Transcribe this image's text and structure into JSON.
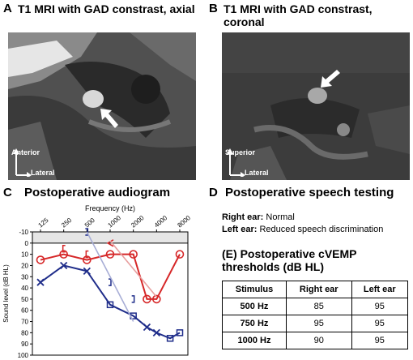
{
  "panels": {
    "a": {
      "label": "A",
      "title": "T1 MRI with GAD constrast, axial",
      "orient_primary": "Anterior",
      "orient_secondary": "Lateral"
    },
    "b": {
      "label": "B",
      "title": "T1 MRI with GAD constrast, coronal",
      "orient_primary": "Superior",
      "orient_secondary": "Lateral"
    },
    "c": {
      "label": "C",
      "title": "Postoperative audiogram"
    },
    "d": {
      "label": "D",
      "title": "Postoperative speech testing",
      "right_label": "Right ear:",
      "right_value": "Normal",
      "left_label": "Left ear:",
      "left_value": "Reduced speech discrimination"
    },
    "e": {
      "label": "(E)",
      "title_line1": "Postoperative cVEMP",
      "title_line2": "thresholds (dB HL)",
      "headers": [
        "Stimulus",
        "Right ear",
        "Left ear"
      ],
      "rows": [
        [
          "500 Hz",
          "85",
          "95"
        ],
        [
          "750 Hz",
          "95",
          "95"
        ],
        [
          "1000 Hz",
          "90",
          "95"
        ]
      ]
    }
  },
  "chart_data": {
    "type": "line",
    "title": "Postoperative audiogram",
    "xlabel": "Frequency (Hz)",
    "ylabel": "Sound level (dB HL)",
    "x_categories": [
      "125",
      "250",
      "500",
      "1000",
      "2000",
      "4000",
      "8000"
    ],
    "y_ticks": [
      "-10",
      "0",
      "10",
      "20",
      "30",
      "40",
      "50",
      "60",
      "70",
      "80",
      "90",
      "100"
    ],
    "ylim": [
      -10,
      100
    ],
    "y_inverted": true,
    "series": [
      {
        "ear": "right",
        "conduction": "air",
        "marker": "O",
        "color": "#d62728",
        "points": [
          [
            125,
            15
          ],
          [
            250,
            10
          ],
          [
            500,
            15
          ],
          [
            1000,
            10
          ],
          [
            2000,
            10
          ],
          [
            3000,
            50
          ],
          [
            4000,
            50
          ],
          [
            8000,
            10
          ]
        ]
      },
      {
        "ear": "right",
        "conduction": "bone",
        "marker": "[",
        "color": "#d62728",
        "points": [
          [
            250,
            5
          ],
          [
            500,
            10
          ]
        ]
      },
      {
        "ear": "right",
        "conduction": "masked bone",
        "marker": "<",
        "color": "#d62728",
        "points": [
          [
            1000,
            0
          ]
        ]
      },
      {
        "ear": "left",
        "conduction": "air",
        "marker": "X",
        "color": "#1f2d8a",
        "points": [
          [
            125,
            35
          ],
          [
            250,
            20
          ],
          [
            500,
            25
          ],
          [
            3000,
            75
          ],
          [
            4000,
            80
          ]
        ]
      },
      {
        "ear": "left",
        "conduction": "masked air",
        "marker": "square",
        "color": "#1f2d8a",
        "points": [
          [
            1000,
            55
          ],
          [
            2000,
            65
          ],
          [
            6000,
            85
          ],
          [
            8000,
            80
          ]
        ]
      },
      {
        "ear": "left",
        "conduction": "masked bone",
        "marker": "]",
        "color": "#1f2d8a",
        "points": [
          [
            500,
            -10
          ],
          [
            1000,
            35
          ],
          [
            2000,
            50
          ]
        ]
      },
      {
        "ear": "right",
        "conduction": "air (trend)",
        "marker": "none",
        "color": "#e8a0a0",
        "points": [
          [
            1000,
            -2
          ],
          [
            4000,
            48
          ]
        ]
      },
      {
        "ear": "left",
        "conduction": "bone (trend)",
        "marker": "none",
        "color": "#a8aed6",
        "points": [
          [
            500,
            -10
          ],
          [
            2000,
            70
          ]
        ]
      }
    ]
  }
}
